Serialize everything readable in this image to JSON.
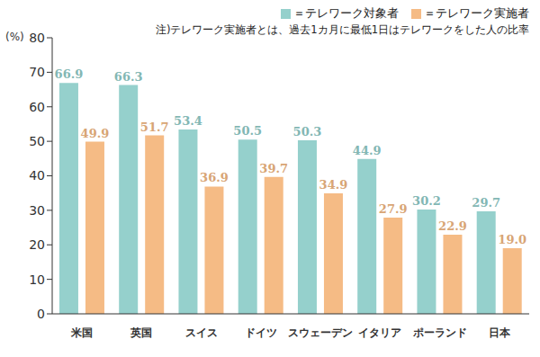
{
  "chart_data": {
    "type": "bar",
    "categories": [
      "米国",
      "英国",
      "スイス",
      "ドイツ",
      "スウェーデン",
      "イタリア",
      "ポーランド",
      "日本"
    ],
    "series": [
      {
        "name": "＝テレワーク対象者",
        "color": "#95d0cc",
        "values": [
          66.9,
          66.3,
          53.4,
          50.5,
          50.3,
          44.9,
          30.2,
          29.7
        ],
        "value_labels": [
          "66.9",
          "66.3",
          "53.4",
          "50.5",
          "50.3",
          "44.9",
          "30.2",
          "29.7"
        ]
      },
      {
        "name": "＝テレワーク実施者",
        "color": "#f5bb85",
        "values": [
          49.9,
          51.7,
          36.9,
          39.7,
          34.9,
          27.9,
          22.9,
          19.0
        ],
        "value_labels": [
          "49.9",
          "51.7",
          "36.9",
          "39.7",
          "34.9",
          "27.9",
          "22.9",
          "19.0"
        ]
      }
    ],
    "annotation": "注)テレワーク実施者とは、過去1カ月に最低1日はテレワークをした人の比率",
    "ylabel": "(%)",
    "ylim": [
      0,
      80
    ],
    "yticks": [
      0,
      10,
      20,
      30,
      40,
      50,
      60,
      70,
      80
    ],
    "grid": false,
    "legend": "top-right",
    "data_labels": true
  }
}
